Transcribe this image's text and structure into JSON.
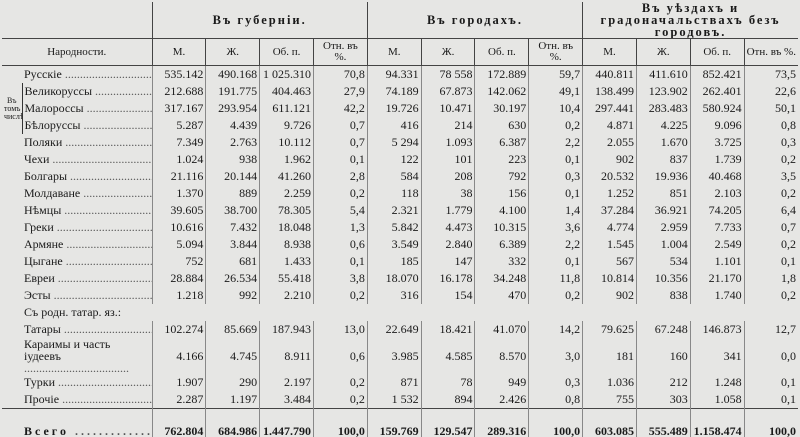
{
  "table": {
    "groups": [
      "Въ губерніи.",
      "Въ городахъ.",
      "Въ уѣздахъ и градоначальствахъ безъ городовъ."
    ],
    "name_header": "Народности.",
    "columns": [
      "М.",
      "Ж.",
      "Об. п.",
      "Отн. въ %."
    ],
    "side_note": "Въ томъ числѣ:",
    "rows": [
      {
        "name": "Русскіе",
        "cells": [
          "535.142",
          "490.168",
          "1 025.310",
          "70,8",
          "94.331",
          "78 558",
          "172.889",
          "59,7",
          "440.811",
          "411.610",
          "852.421",
          "73,5"
        ]
      },
      {
        "name": "Великоруссы",
        "cells": [
          "212.688",
          "191.775",
          "404.463",
          "27,9",
          "74.189",
          "67.873",
          "142.062",
          "49,1",
          "138.499",
          "123.902",
          "262.401",
          "22,6"
        ]
      },
      {
        "name": "Малороссы",
        "cells": [
          "317.167",
          "293.954",
          "611.121",
          "42,2",
          "19.726",
          "10.471",
          "30.197",
          "10,4",
          "297.441",
          "283.483",
          "580.924",
          "50,1"
        ]
      },
      {
        "name": "Бѣлоруссы",
        "cells": [
          "5.287",
          "4.439",
          "9.726",
          "0,7",
          "416",
          "214",
          "630",
          "0,2",
          "4.871",
          "4.225",
          "9.096",
          "0,8"
        ]
      },
      {
        "name": "Поляки",
        "cells": [
          "7.349",
          "2.763",
          "10.112",
          "0,7",
          "5 294",
          "1.093",
          "6.387",
          "2,2",
          "2.055",
          "1.670",
          "3.725",
          "0,3"
        ]
      },
      {
        "name": "Чехи",
        "cells": [
          "1.024",
          "938",
          "1.962",
          "0,1",
          "122",
          "101",
          "223",
          "0,1",
          "902",
          "837",
          "1.739",
          "0,2"
        ]
      },
      {
        "name": "Болгары",
        "cells": [
          "21.116",
          "20.144",
          "41.260",
          "2,8",
          "584",
          "208",
          "792",
          "0,3",
          "20.532",
          "19.936",
          "40.468",
          "3,5"
        ]
      },
      {
        "name": "Молдаване",
        "cells": [
          "1.370",
          "889",
          "2.259",
          "0,2",
          "118",
          "38",
          "156",
          "0,1",
          "1.252",
          "851",
          "2.103",
          "0,2"
        ]
      },
      {
        "name": "Нѣмцы",
        "cells": [
          "39.605",
          "38.700",
          "78.305",
          "5,4",
          "2.321",
          "1.779",
          "4.100",
          "1,4",
          "37.284",
          "36.921",
          "74.205",
          "6,4"
        ]
      },
      {
        "name": "Греки",
        "cells": [
          "10.616",
          "7.432",
          "18.048",
          "1,3",
          "5.842",
          "4.473",
          "10.315",
          "3,6",
          "4.774",
          "2.959",
          "7.733",
          "0,7"
        ]
      },
      {
        "name": "Армяне",
        "cells": [
          "5.094",
          "3.844",
          "8.938",
          "0,6",
          "3.549",
          "2.840",
          "6.389",
          "2,2",
          "1.545",
          "1.004",
          "2.549",
          "0,2"
        ]
      },
      {
        "name": "Цыгане",
        "cells": [
          "752",
          "681",
          "1.433",
          "0,1",
          "185",
          "147",
          "332",
          "0,1",
          "567",
          "534",
          "1.101",
          "0,1"
        ]
      },
      {
        "name": "Евреи",
        "cells": [
          "28.884",
          "26.534",
          "55.418",
          "3,8",
          "18.070",
          "16.178",
          "34.248",
          "11,8",
          "10.814",
          "10.356",
          "21.170",
          "1,8"
        ]
      },
      {
        "name": "Эсты",
        "cells": [
          "1.218",
          "992",
          "2.210",
          "0,2",
          "316",
          "154",
          "470",
          "0,2",
          "902",
          "838",
          "1.740",
          "0,2"
        ]
      },
      {
        "section": "Съ родн. татар. яз.:"
      },
      {
        "name": "Татары",
        "cells": [
          "102.274",
          "85.669",
          "187.943",
          "13,0",
          "22.649",
          "18.421",
          "41.070",
          "14,2",
          "79.625",
          "67.248",
          "146.873",
          "12,7"
        ]
      },
      {
        "name": "Караимы и часть іудеевъ",
        "cells": [
          "4.166",
          "4.745",
          "8.911",
          "0,6",
          "3.985",
          "4.585",
          "8.570",
          "3,0",
          "181",
          "160",
          "341",
          "0,0"
        ]
      },
      {
        "name": "Турки",
        "cells": [
          "1.907",
          "290",
          "2.197",
          "0,2",
          "871",
          "78",
          "949",
          "0,3",
          "1.036",
          "212",
          "1.248",
          "0,1"
        ]
      },
      {
        "name": "Прочіе",
        "cells": [
          "2.287",
          "1.197",
          "3.484",
          "0,2",
          "1 532",
          "894",
          "2.426",
          "0,8",
          "755",
          "303",
          "1.058",
          "0,1"
        ]
      }
    ],
    "total": {
      "name": "Всего",
      "cells": [
        "762.804",
        "684.986",
        "1.447.790",
        "100,0",
        "159.769",
        "129.547",
        "289.316",
        "100,0",
        "603.085",
        "555.489",
        "1.158.474",
        "100,0"
      ]
    }
  }
}
